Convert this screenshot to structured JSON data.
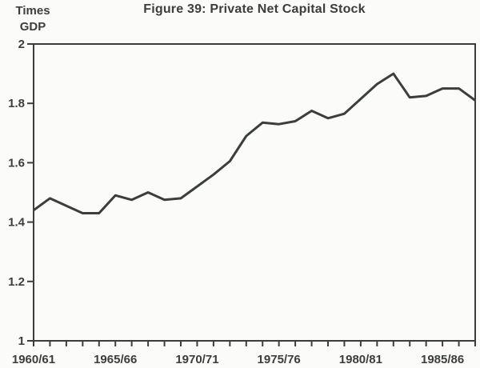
{
  "figure": {
    "title": "Figure 39: Private Net Capital Stock"
  },
  "colors": {
    "ink": "#3a3f3d",
    "paper": "#fbfbf9"
  },
  "chart_data": {
    "type": "line",
    "title": "Figure 39: Private Net Capital Stock",
    "ylabel_lines": [
      "Times",
      "GDP"
    ],
    "x": [
      "1960/61",
      "1961/62",
      "1962/63",
      "1963/64",
      "1964/65",
      "1965/66",
      "1966/67",
      "1967/68",
      "1968/69",
      "1969/70",
      "1970/71",
      "1971/72",
      "1972/73",
      "1973/74",
      "1974/75",
      "1975/76",
      "1976/77",
      "1977/78",
      "1978/79",
      "1979/80",
      "1980/81",
      "1981/82",
      "1982/83",
      "1983/84",
      "1984/85",
      "1985/86",
      "1986/87",
      "1987/88"
    ],
    "values": [
      1.44,
      1.48,
      1.455,
      1.43,
      1.43,
      1.49,
      1.475,
      1.5,
      1.475,
      1.48,
      1.52,
      1.56,
      1.605,
      1.69,
      1.735,
      1.73,
      1.74,
      1.775,
      1.75,
      1.765,
      1.815,
      1.865,
      1.9,
      1.82,
      1.825,
      1.85,
      1.85,
      1.81
    ],
    "ylim": [
      1,
      2
    ],
    "yticks": [
      2,
      1.8,
      1.6,
      1.4,
      1.2,
      1
    ],
    "ytick_labels": [
      "2",
      "1.8",
      "1.6",
      "1.4",
      "1.2",
      "1"
    ],
    "xtick_labels_major": [
      "1960/61",
      "1965/66",
      "1970/71",
      "1975/76",
      "1980/81",
      "1985/86"
    ],
    "major_tick_every": 5,
    "grid": false,
    "legend": "none",
    "line_color": "#3a3f3d"
  }
}
